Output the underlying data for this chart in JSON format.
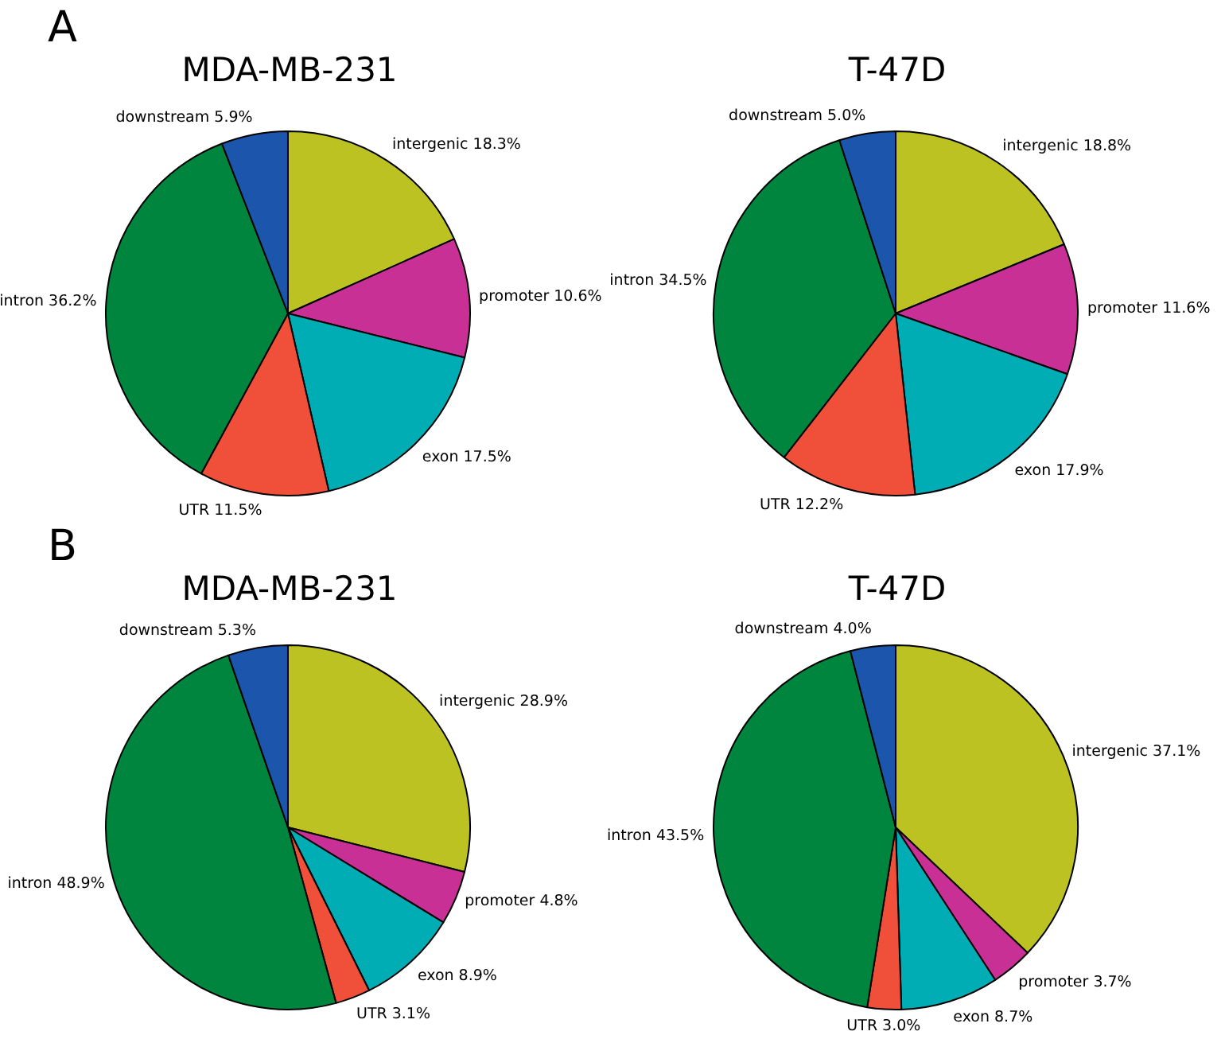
{
  "chart_data": [
    {
      "type": "pie",
      "title": "MDA-MB-231",
      "annotations": [
        "A"
      ],
      "categories": [
        "intergenic",
        "promoter",
        "exon",
        "UTR",
        "intron",
        "downstream"
      ],
      "values": [
        18.3,
        10.6,
        17.5,
        11.5,
        36.2,
        5.9
      ],
      "value_labels": [
        "18.3%",
        "10.6%",
        "17.5%",
        "11.5%",
        "36.2%",
        "5.9%"
      ],
      "colors": [
        "#bdc223",
        "#c93096",
        "#00adb5",
        "#f0503a",
        "#00853e",
        "#1b55ac"
      ],
      "legend": false
    },
    {
      "type": "pie",
      "title": "T-47D",
      "categories": [
        "intergenic",
        "promoter",
        "exon",
        "UTR",
        "intron",
        "downstream"
      ],
      "values": [
        18.8,
        11.6,
        17.9,
        12.2,
        34.5,
        5.0
      ],
      "value_labels": [
        "18.8%",
        "11.6%",
        "17.9%",
        "12.2%",
        "34.5%",
        "5.0%"
      ],
      "colors": [
        "#bdc223",
        "#c93096",
        "#00adb5",
        "#f0503a",
        "#00853e",
        "#1b55ac"
      ],
      "legend": false
    },
    {
      "type": "pie",
      "title": "MDA-MB-231",
      "annotations": [
        "B"
      ],
      "categories": [
        "intergenic",
        "promoter",
        "exon",
        "UTR",
        "intron",
        "downstream"
      ],
      "values": [
        28.9,
        4.8,
        8.9,
        3.1,
        48.9,
        5.3
      ],
      "value_labels": [
        "28.9%",
        "4.8%",
        "8.9%",
        "3.1%",
        "48.9%",
        "5.3%"
      ],
      "colors": [
        "#bdc223",
        "#c93096",
        "#00adb5",
        "#f0503a",
        "#00853e",
        "#1b55ac"
      ],
      "legend": false
    },
    {
      "type": "pie",
      "title": "T-47D",
      "categories": [
        "intergenic",
        "promoter",
        "exon",
        "UTR",
        "intron",
        "downstream"
      ],
      "values": [
        37.1,
        3.7,
        8.7,
        3.0,
        43.5,
        4.0
      ],
      "value_labels": [
        "37.1%",
        "3.7%",
        "8.7%",
        "3.0%",
        "43.5%",
        "4.0%"
      ],
      "colors": [
        "#bdc223",
        "#c93096",
        "#00adb5",
        "#f0503a",
        "#00853e",
        "#1b55ac"
      ],
      "legend": false
    }
  ]
}
